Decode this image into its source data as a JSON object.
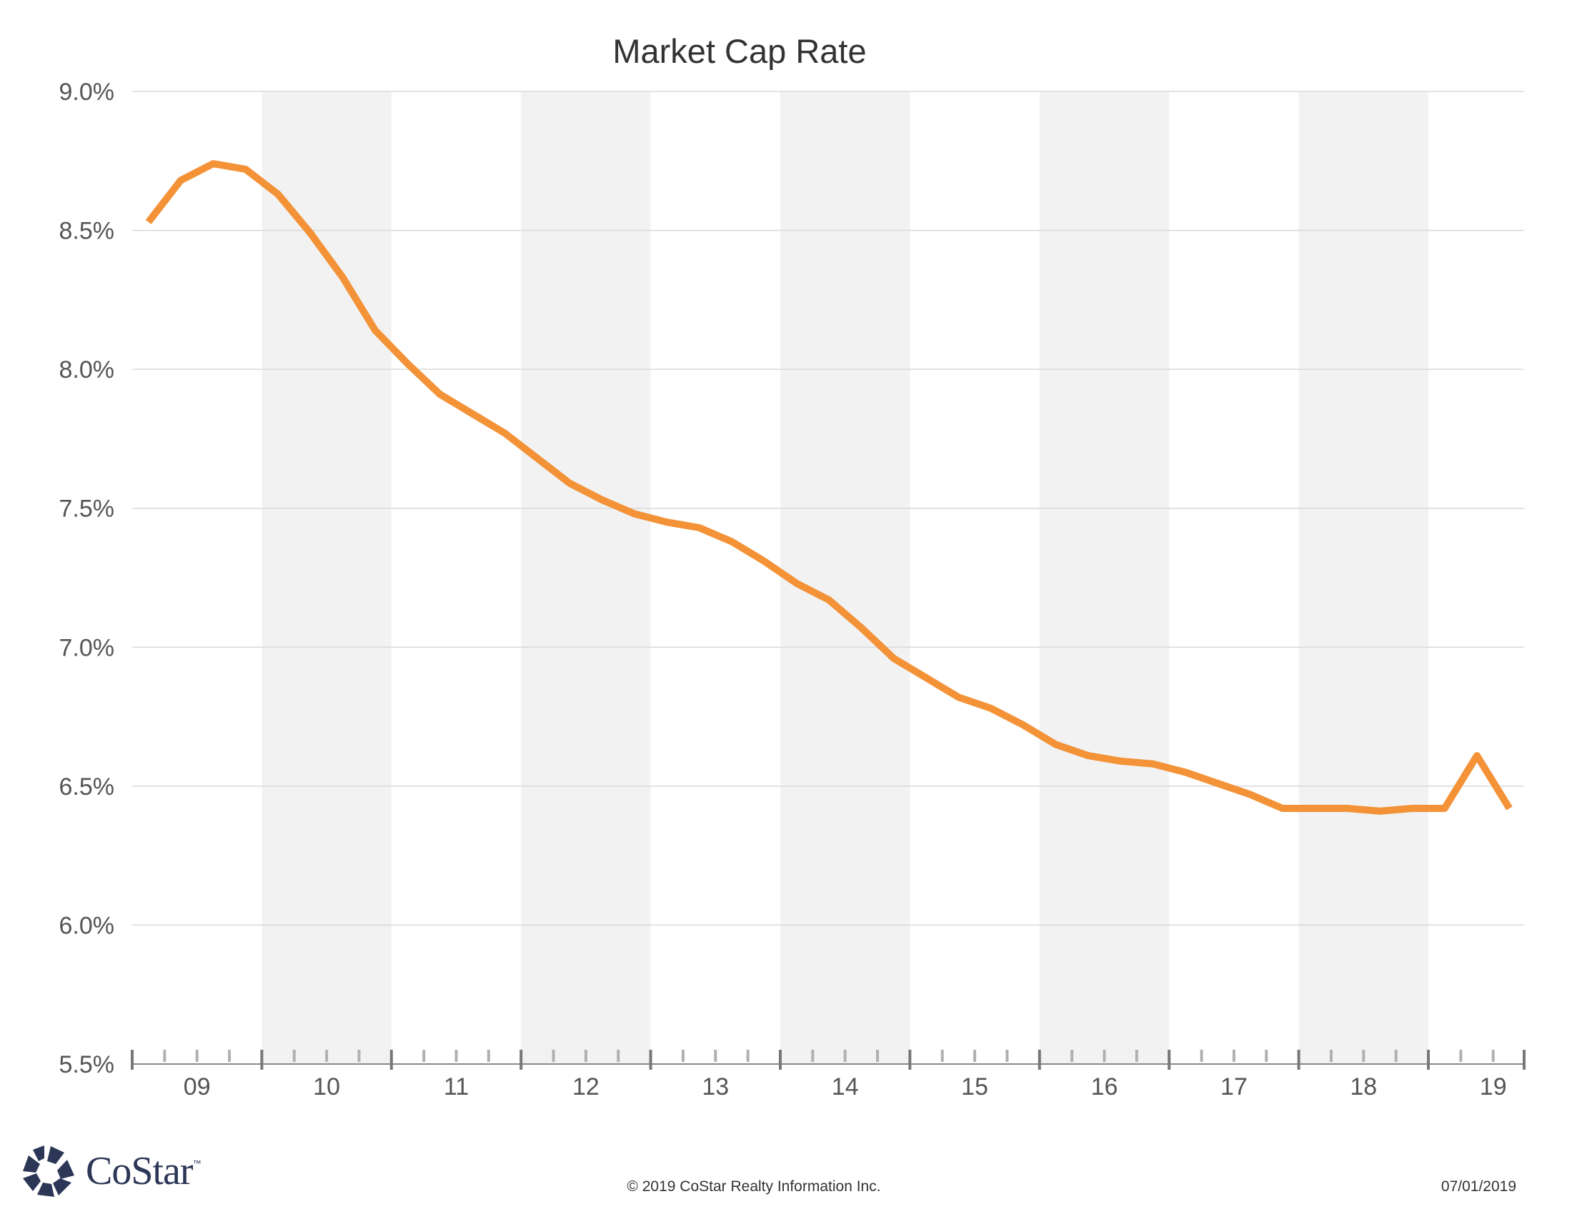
{
  "brand": {
    "name": "CoStar",
    "trademark": "™",
    "logo_icon": "costar-star-icon"
  },
  "footer": {
    "copyright": "© 2019 CoStar Realty Information Inc.",
    "date": "07/01/2019"
  },
  "colors": {
    "line": "#f39237",
    "band": "#f2f2f2",
    "grid": "#d9d9d9",
    "axis": "#888888",
    "brand": "#2c3656"
  },
  "chart_data": {
    "type": "line",
    "title": "Market Cap Rate",
    "xlabel": "",
    "ylabel": "",
    "ylim": [
      5.5,
      9.0
    ],
    "yticks": [
      5.5,
      6.0,
      6.5,
      7.0,
      7.5,
      8.0,
      8.5,
      9.0
    ],
    "ytick_labels": [
      "5.5%",
      "6.0%",
      "6.5%",
      "7.0%",
      "7.5%",
      "8.0%",
      "8.5%",
      "9.0%"
    ],
    "year_labels": [
      "09",
      "10",
      "11",
      "12",
      "13",
      "14",
      "15",
      "16",
      "17",
      "18",
      "19"
    ],
    "x_units": "quarter index (0 = 2009 Q1)",
    "shaded_years": [
      "10",
      "12",
      "14",
      "16",
      "18"
    ],
    "grid": true,
    "legend": "none",
    "series": [
      {
        "name": "Market Cap Rate",
        "x": [
          0,
          1,
          2,
          3,
          4,
          5,
          6,
          7,
          8,
          9,
          10,
          11,
          12,
          13,
          14,
          15,
          16,
          17,
          18,
          19,
          20,
          21,
          22,
          23,
          24,
          25,
          26,
          27,
          28,
          29,
          30,
          31,
          32,
          33,
          34,
          35,
          36,
          37,
          38,
          39,
          40,
          41,
          42
        ],
        "values": [
          8.53,
          8.68,
          8.74,
          8.72,
          8.63,
          8.49,
          8.33,
          8.14,
          8.02,
          7.91,
          7.84,
          7.77,
          7.68,
          7.59,
          7.53,
          7.48,
          7.45,
          7.43,
          7.38,
          7.31,
          7.23,
          7.17,
          7.07,
          6.96,
          6.89,
          6.82,
          6.78,
          6.72,
          6.65,
          6.61,
          6.59,
          6.58,
          6.55,
          6.51,
          6.47,
          6.42,
          6.42,
          6.42,
          6.41,
          6.42,
          6.42,
          6.61,
          6.42
        ]
      }
    ]
  }
}
